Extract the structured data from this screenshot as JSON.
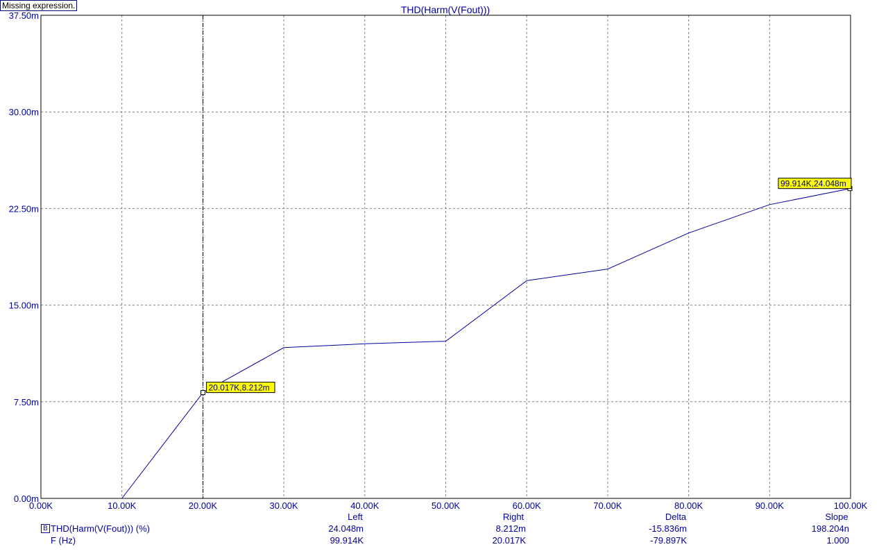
{
  "status_message": "Missing expression.",
  "chart_data": {
    "type": "line",
    "title": "THD(Harm(V(Fout)))",
    "xlim": [
      0,
      100000
    ],
    "ylim": [
      0,
      37.5
    ],
    "grid": true,
    "x_tick_labels": [
      "0.00K",
      "10.00K",
      "20.00K",
      "30.00K",
      "40.00K",
      "50.00K",
      "60.00K",
      "70.00K",
      "80.00K",
      "90.00K",
      "100.00K"
    ],
    "y_tick_labels": [
      "0.00m",
      "7.50m",
      "15.00m",
      "22.50m",
      "30.00m",
      "37.50m"
    ],
    "series": [
      {
        "name": "THD(Harm(V(Fout))) (%)",
        "color": "#0000a0",
        "x": [
          10000,
          20017,
          30000,
          40000,
          50000,
          60000,
          70000,
          80000,
          90000,
          99914
        ],
        "y": [
          0.0,
          8.212,
          11.7,
          12.0,
          12.2,
          16.9,
          17.8,
          20.6,
          22.8,
          24.048
        ]
      }
    ],
    "cursors": [
      {
        "label": "20.017K,8.212m",
        "x": 20017,
        "y": 8.212,
        "line": true
      },
      {
        "label": "99.914K,24.048m",
        "x": 99914,
        "y": 24.048,
        "line": false
      }
    ]
  },
  "measure_table": {
    "headers": {
      "left": "Left",
      "right": "Right",
      "delta": "Delta",
      "slope": "Slope"
    },
    "legend_marker": "B",
    "rows": [
      {
        "name": "THD(Harm(V(Fout))) (%)",
        "left": "24.048m",
        "right": "8.212m",
        "delta": "-15.836m",
        "slope": "198.204n"
      },
      {
        "name": "F (Hz)",
        "left": "99.914K",
        "right": "20.017K",
        "delta": "-79.897K",
        "slope": "1.000"
      }
    ]
  }
}
